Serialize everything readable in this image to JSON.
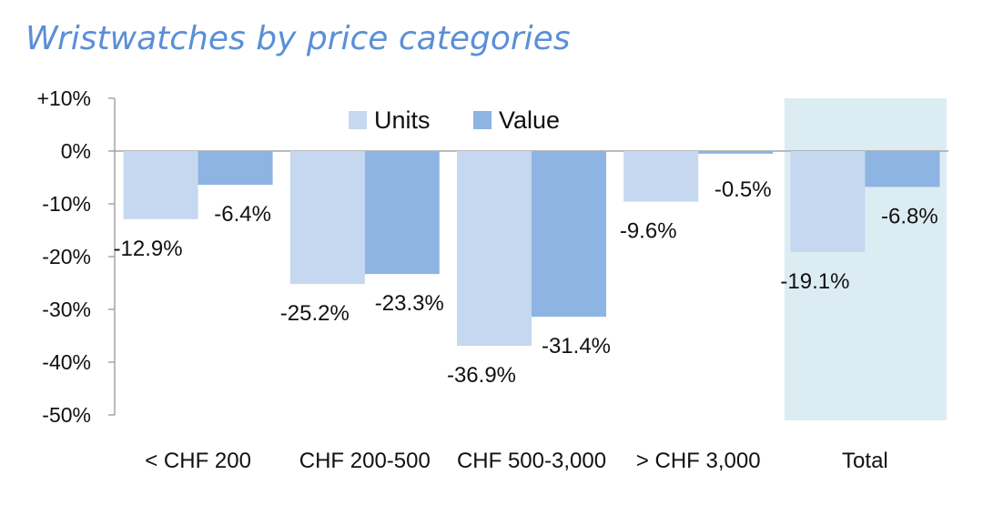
{
  "chart_data": {
    "type": "bar",
    "title": "Wristwatches by price categories",
    "categories": [
      "< CHF 200",
      "CHF 200-500",
      "CHF 500-3,000",
      "> CHF 3,000",
      "Total"
    ],
    "series": [
      {
        "name": "Units",
        "values": [
          -12.9,
          -25.2,
          -36.9,
          -9.6,
          -19.1
        ],
        "labels": [
          "-12.9%",
          "-25.2%",
          "-36.9%",
          "-9.6%",
          "-19.1%"
        ],
        "color": "#c5d8ef"
      },
      {
        "name": "Value",
        "values": [
          -6.4,
          -23.3,
          -31.4,
          -0.5,
          -6.8
        ],
        "labels": [
          "-6.4%",
          "-23.3%",
          "-31.4%",
          "-0.5%",
          "-6.8%"
        ],
        "color": "#8db4e2"
      }
    ],
    "yticks": [
      "+10%",
      "0%",
      "-10%",
      "-20%",
      "-30%",
      "-40%",
      "-50%"
    ],
    "ylim": [
      -50,
      10
    ],
    "highlight_category": "Total",
    "highlight_color": "#dcecf3",
    "legend_position": "top-center",
    "grid": false
  }
}
